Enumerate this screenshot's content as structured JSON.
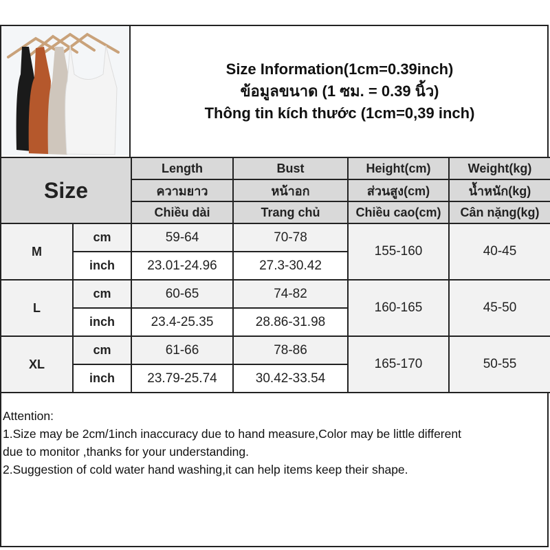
{
  "info": {
    "line1": "Size Information(1cm=0.39inch)",
    "line2": "ข้อมูลขนาด (1 ซม. = 0.39 นิ้ว)",
    "line3": "Thông tin kích thước (1cm=0,39 inch)"
  },
  "photo": {
    "colors": [
      "#1a1a1a",
      "#b5582c",
      "#cfc6bc",
      "#f4f4f4"
    ]
  },
  "table": {
    "size_label": "Size",
    "headers": [
      [
        "Length",
        "ความยาว",
        "Chiều dài"
      ],
      [
        "Bust",
        "หน้าอก",
        "Trang chủ"
      ],
      [
        "Height(cm)",
        "ส่วนสูง(cm)",
        "Chiều cao(cm)"
      ],
      [
        "Weight(kg)",
        "น้ำหนัก(kg)",
        "Cân nặng(kg)"
      ]
    ],
    "unit_cm": "cm",
    "unit_inch": "inch",
    "rows": [
      {
        "size": "M",
        "cm": [
          "59-64",
          "70-78"
        ],
        "inch": [
          "23.01-24.96",
          "27.3-30.42"
        ],
        "height": "155-160",
        "weight": "40-45"
      },
      {
        "size": "L",
        "cm": [
          "60-65",
          "74-82"
        ],
        "inch": [
          "23.4-25.35",
          "28.86-31.98"
        ],
        "height": "160-165",
        "weight": "45-50"
      },
      {
        "size": "XL",
        "cm": [
          "61-66",
          "78-86"
        ],
        "inch": [
          "23.79-25.74",
          "30.42-33.54"
        ],
        "height": "165-170",
        "weight": "50-55"
      }
    ]
  },
  "attention": {
    "title": "Attention:",
    "line1": "1.Size may be 2cm/1inch inaccuracy due to hand measure,Color may be little different",
    "line1b": "due to monitor ,thanks for your understanding.",
    "line2": "2.Suggestion of cold water hand washing,it can help items keep their shape."
  }
}
